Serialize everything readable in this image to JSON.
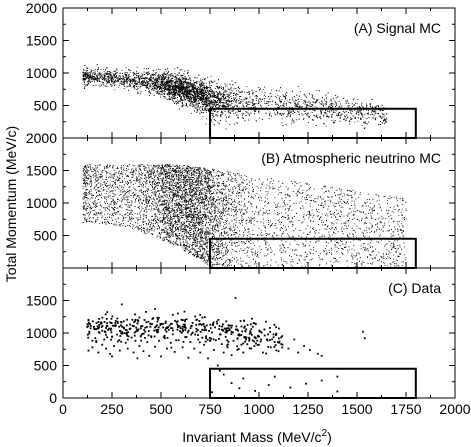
{
  "chart_data": {
    "type": "scatter",
    "xlabel": "Invariant Mass (MeV/c",
    "xlabel_sup": "2",
    "xlabel_close": ")",
    "ylabel": "Total Momentum (MeV/c)",
    "xlim": [
      0,
      2000
    ],
    "ylim": [
      0,
      2000
    ],
    "x_ticks": [
      0,
      250,
      500,
      750,
      1000,
      1250,
      1500,
      1750,
      2000
    ],
    "y_ticks": [
      500,
      1000,
      1500,
      2000
    ],
    "bottom_y_ticks": [
      0,
      500,
      1000,
      1500
    ],
    "grid": false,
    "signal_box": {
      "x": [
        750,
        1800
      ],
      "y": [
        0,
        450
      ]
    },
    "panels": [
      {
        "label": "(A) Signal MC",
        "ylim": [
          0,
          2000
        ],
        "density": "dense",
        "bounds": {
          "pmin_at_100": 700,
          "pmin_at_700": 160,
          "xmax": 1650,
          "pmax_peak": 1150
        }
      },
      {
        "label": "(B) Atmospheric neutrino MC",
        "ylim": [
          0,
          2000
        ],
        "density": "dense",
        "bounds": {
          "pmin_at_100": 700,
          "pmin_at_700": 160,
          "xmax": 1750,
          "pmax_peak": 1600
        }
      },
      {
        "label": "(C) Data",
        "ylim": [
          0,
          2000
        ],
        "density": "sparse",
        "points_sample": [
          [
            130,
            730
          ],
          [
            150,
            780
          ],
          [
            170,
            860
          ],
          [
            180,
            700
          ],
          [
            200,
            820
          ],
          [
            210,
            900
          ],
          [
            220,
            760
          ],
          [
            230,
            1050
          ],
          [
            240,
            680
          ],
          [
            250,
            940
          ],
          [
            260,
            800
          ],
          [
            270,
            1120
          ],
          [
            280,
            870
          ],
          [
            290,
            730
          ],
          [
            300,
            990
          ],
          [
            310,
            1180
          ],
          [
            320,
            850
          ],
          [
            330,
            760
          ],
          [
            340,
            1060
          ],
          [
            350,
            930
          ],
          [
            360,
            700
          ],
          [
            370,
            880
          ],
          [
            380,
            1150
          ],
          [
            390,
            800
          ],
          [
            400,
            970
          ],
          [
            410,
            720
          ],
          [
            420,
            1080
          ],
          [
            430,
            860
          ],
          [
            440,
            650
          ],
          [
            450,
            950
          ],
          [
            460,
            1230
          ],
          [
            470,
            790
          ],
          [
            480,
            1010
          ],
          [
            490,
            880
          ],
          [
            500,
            640
          ],
          [
            510,
            1140
          ],
          [
            520,
            920
          ],
          [
            530,
            760
          ],
          [
            540,
            1050
          ],
          [
            550,
            850
          ],
          [
            560,
            980
          ],
          [
            570,
            710
          ],
          [
            580,
            1170
          ],
          [
            590,
            890
          ],
          [
            600,
            1020
          ],
          [
            610,
            780
          ],
          [
            620,
            1100
          ],
          [
            630,
            940
          ],
          [
            640,
            620
          ],
          [
            650,
            860
          ],
          [
            660,
            1000
          ],
          [
            670,
            760
          ],
          [
            680,
            1200
          ],
          [
            690,
            900
          ],
          [
            700,
            700
          ],
          [
            710,
            1050
          ],
          [
            720,
            820
          ],
          [
            730,
            950
          ],
          [
            740,
            610
          ],
          [
            750,
            880
          ],
          [
            760,
            1010
          ],
          [
            770,
            740
          ],
          [
            780,
            890
          ],
          [
            790,
            500
          ],
          [
            800,
            980
          ],
          [
            810,
            830
          ],
          [
            820,
            700
          ],
          [
            830,
            940
          ],
          [
            840,
            780
          ],
          [
            850,
            1050
          ],
          [
            860,
            660
          ],
          [
            870,
            880
          ],
          [
            880,
            1540
          ],
          [
            890,
            740
          ],
          [
            900,
            960
          ],
          [
            910,
            820
          ],
          [
            920,
            700
          ],
          [
            930,
            1030
          ],
          [
            950,
            880
          ],
          [
            960,
            760
          ],
          [
            980,
            930
          ],
          [
            1000,
            820
          ],
          [
            1020,
            700
          ],
          [
            1040,
            900
          ],
          [
            1060,
            780
          ],
          [
            1080,
            860
          ],
          [
            1100,
            720
          ],
          [
            1120,
            820
          ],
          [
            1150,
            760
          ],
          [
            1180,
            900
          ],
          [
            1200,
            700
          ],
          [
            1230,
            800
          ],
          [
            1260,
            740
          ],
          [
            1300,
            680
          ],
          [
            1320,
            650
          ],
          [
            1400,
            330
          ],
          [
            1530,
            1020
          ],
          [
            1540,
            920
          ],
          [
            300,
            1440
          ],
          [
            250,
            640
          ],
          [
            380,
            610
          ],
          [
            560,
            1280
          ],
          [
            620,
            1330
          ],
          [
            470,
            1370
          ],
          [
            700,
            1280
          ],
          [
            820,
            360
          ],
          [
            860,
            230
          ],
          [
            920,
            300
          ],
          [
            1050,
            200
          ],
          [
            1160,
            160
          ],
          [
            980,
            110
          ],
          [
            1240,
            220
          ],
          [
            760,
            90
          ],
          [
            800,
            420
          ],
          [
            1080,
            330
          ],
          [
            1320,
            270
          ],
          [
            1400,
            100
          ],
          [
            900,
            150
          ]
        ]
      }
    ]
  }
}
